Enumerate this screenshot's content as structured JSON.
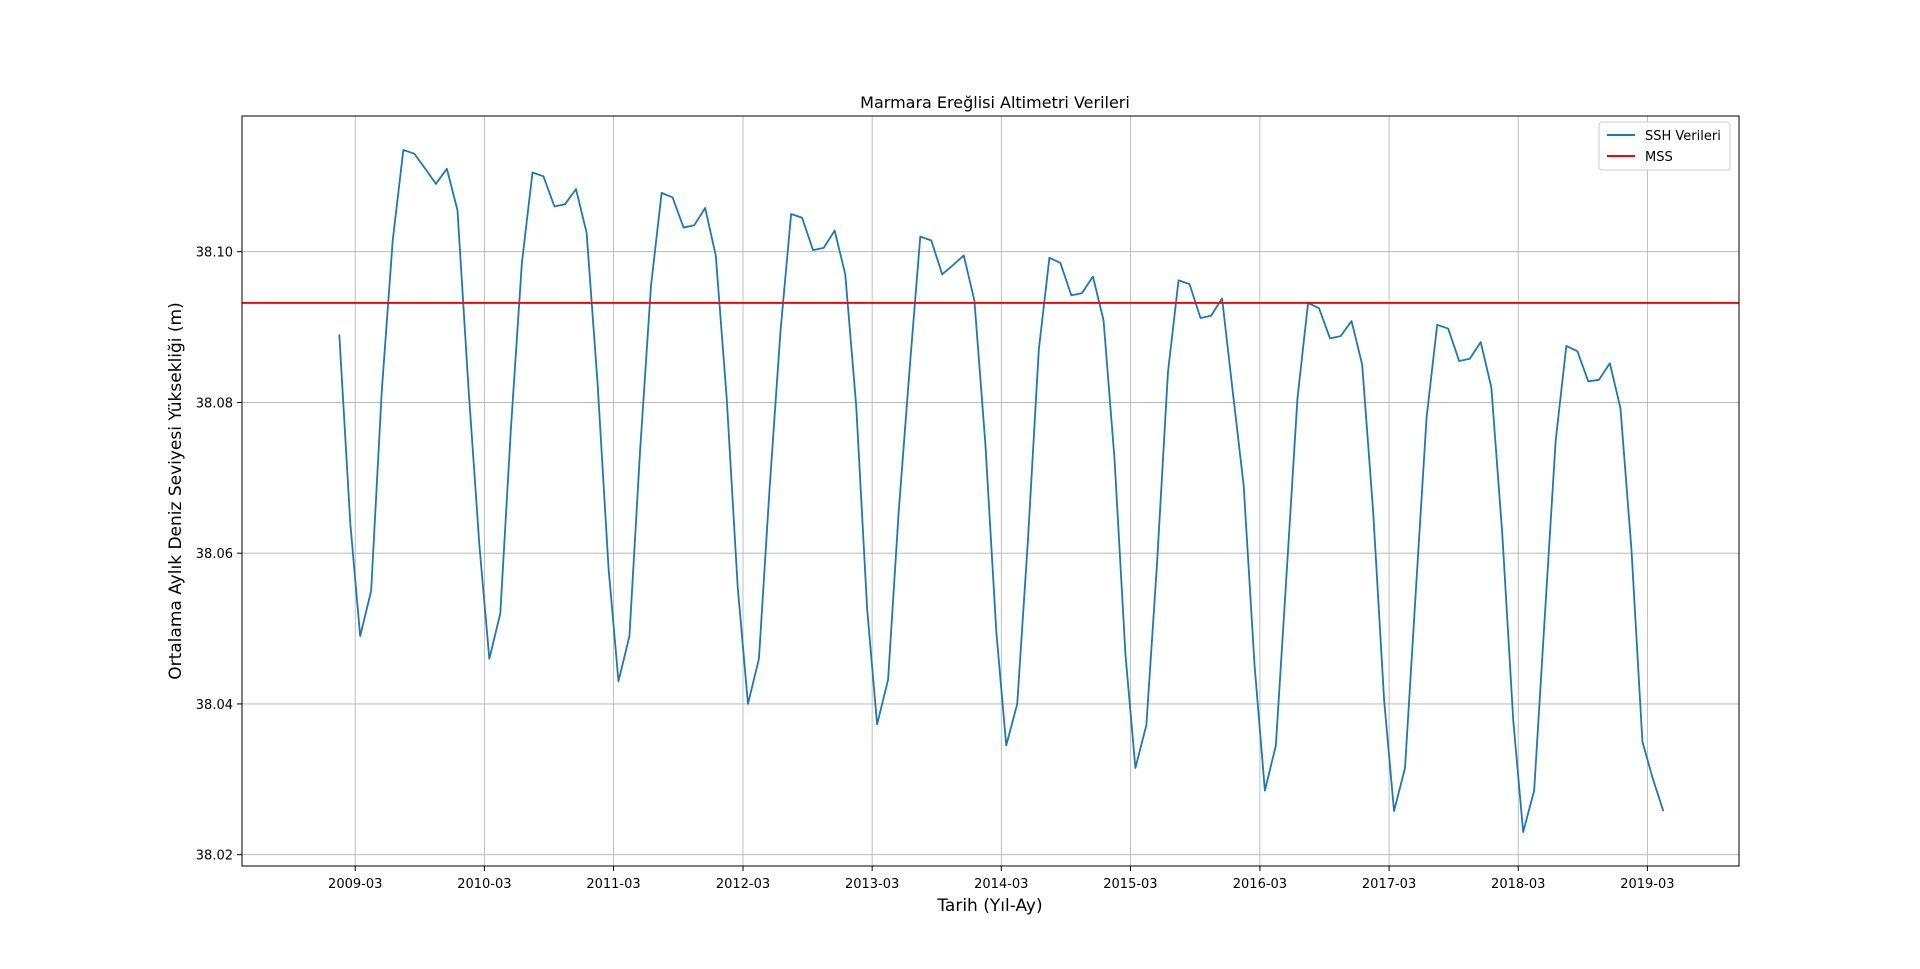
{
  "chart_data": {
    "type": "line",
    "title": "Marmara Ereğlisi Altimetri Verileri",
    "xlabel": "Tarih (Yıl-Ay)",
    "ylabel": "Ortalama Aylık Deniz Seviyesi Yüksekliği (m)",
    "ylim": [
      38.0185,
      38.118
    ],
    "xlim": [
      "2008-04-15",
      "2019-11-15"
    ],
    "grid": true,
    "legend_position": "top-right",
    "y_ticks": [
      38.02,
      38.04,
      38.06,
      38.08,
      38.1
    ],
    "y_tick_labels": [
      "38.02",
      "38.04",
      "38.06",
      "38.08",
      "38.10"
    ],
    "x_ticks": [
      "2009-03-01",
      "2010-03-01",
      "2011-03-01",
      "2012-03-01",
      "2013-03-01",
      "2014-03-01",
      "2015-03-01",
      "2016-03-01",
      "2017-03-01",
      "2018-03-01",
      "2019-03-01"
    ],
    "x_tick_labels": [
      "2009-03",
      "2010-03",
      "2011-03",
      "2012-03",
      "2013-03",
      "2014-03",
      "2015-03",
      "2016-03",
      "2017-03",
      "2018-03",
      "2019-03"
    ],
    "series": [
      {
        "name": "SSH Verileri",
        "color": "#1f77b4",
        "x": [
          "2009-01",
          "2009-02",
          "2009-03",
          "2009-04",
          "2009-05",
          "2009-06",
          "2009-07",
          "2009-08",
          "2009-09",
          "2009-10",
          "2009-11",
          "2009-12",
          "2010-01",
          "2010-02",
          "2010-03",
          "2010-04",
          "2010-05",
          "2010-06",
          "2010-07",
          "2010-08",
          "2010-09",
          "2010-10",
          "2010-11",
          "2010-12",
          "2011-01",
          "2011-02",
          "2011-03",
          "2011-04",
          "2011-05",
          "2011-06",
          "2011-07",
          "2011-08",
          "2011-09",
          "2011-10",
          "2011-11",
          "2011-12",
          "2012-01",
          "2012-02",
          "2012-03",
          "2012-04",
          "2012-05",
          "2012-06",
          "2012-07",
          "2012-08",
          "2012-09",
          "2012-10",
          "2012-11",
          "2012-12",
          "2013-01",
          "2013-02",
          "2013-03",
          "2013-04",
          "2013-05",
          "2013-06",
          "2013-07",
          "2013-08",
          "2013-09",
          "2013-10",
          "2013-11",
          "2013-12",
          "2014-01",
          "2014-02",
          "2014-03",
          "2014-04",
          "2014-05",
          "2014-06",
          "2014-07",
          "2014-08",
          "2014-09",
          "2014-10",
          "2014-11",
          "2014-12",
          "2015-01",
          "2015-02",
          "2015-03",
          "2015-04",
          "2015-05",
          "2015-06",
          "2015-07",
          "2015-08",
          "2015-09",
          "2015-10",
          "2015-11",
          "2015-12",
          "2016-01",
          "2016-02",
          "2016-03",
          "2016-04",
          "2016-05",
          "2016-06",
          "2016-07",
          "2016-08",
          "2016-09",
          "2016-10",
          "2016-11",
          "2016-12",
          "2017-01",
          "2017-02",
          "2017-03",
          "2017-04",
          "2017-05",
          "2017-06",
          "2017-07",
          "2017-08",
          "2017-09",
          "2017-10",
          "2017-11",
          "2017-12",
          "2018-01",
          "2018-02",
          "2018-03",
          "2018-04",
          "2018-05",
          "2018-06",
          "2018-07",
          "2018-08",
          "2018-09",
          "2018-10",
          "2018-11",
          "2018-12",
          "2019-01",
          "2019-02",
          "2019-03",
          "2019-04"
        ],
        "y": [
          38.089,
          38.064,
          38.049,
          38.055,
          38.0815,
          38.1015,
          38.1135,
          38.113,
          38.111,
          38.109,
          38.111,
          38.1055,
          38.082,
          38.061,
          38.046,
          38.052,
          38.0765,
          38.0985,
          38.1105,
          38.11,
          38.106,
          38.1063,
          38.1083,
          38.1025,
          38.0825,
          38.058,
          38.043,
          38.049,
          38.0735,
          38.0955,
          38.1078,
          38.1072,
          38.1032,
          38.1035,
          38.1058,
          38.0995,
          38.0805,
          38.0555,
          38.04,
          38.046,
          38.0685,
          38.0895,
          38.105,
          38.1045,
          38.1002,
          38.1005,
          38.1028,
          38.097,
          38.0795,
          38.0525,
          38.0373,
          38.0432,
          38.0655,
          38.0845,
          38.102,
          38.1015,
          38.097,
          38.0982,
          38.0995,
          38.0935,
          38.0745,
          38.0495,
          38.0345,
          38.04,
          38.0615,
          38.087,
          38.0992,
          38.0985,
          38.0942,
          38.0945,
          38.0967,
          38.0909,
          38.0725,
          38.0465,
          38.0315,
          38.0372,
          38.0585,
          38.084,
          38.0962,
          38.0957,
          38.0912,
          38.0915,
          38.0938,
          38.0815,
          38.069,
          38.045,
          38.0285,
          38.0345,
          38.057,
          38.0805,
          38.0932,
          38.0925,
          38.0885,
          38.0888,
          38.0908,
          38.085,
          38.0655,
          38.0405,
          38.0258,
          38.0315,
          38.0545,
          38.078,
          38.0903,
          38.0898,
          38.0855,
          38.0858,
          38.088,
          38.082,
          38.0625,
          38.0378,
          38.023,
          38.0285,
          38.0515,
          38.075,
          38.0875,
          38.0868,
          38.0828,
          38.083,
          38.0852,
          38.0792,
          38.0605,
          38.035,
          38.0303,
          38.0258
        ]
      },
      {
        "name": "MSS",
        "color": "#ff0000",
        "constant": 38.0932
      }
    ]
  }
}
